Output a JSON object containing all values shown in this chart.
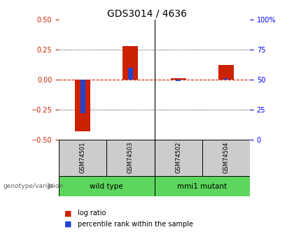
{
  "title": "GDS3014 / 4636",
  "samples": [
    "GSM74501",
    "GSM74503",
    "GSM74502",
    "GSM74504"
  ],
  "log_ratios": [
    -0.43,
    0.28,
    0.01,
    0.12
  ],
  "percentile_ranks": [
    22,
    60,
    49,
    51
  ],
  "groups": [
    {
      "label": "wild type",
      "color": "#5cd65c",
      "indices": [
        0,
        1
      ]
    },
    {
      "label": "mmi1 mutant",
      "color": "#5cd65c",
      "indices": [
        2,
        3
      ]
    }
  ],
  "ylim_left": [
    -0.5,
    0.5
  ],
  "ylim_right": [
    0,
    100
  ],
  "y_ticks_left": [
    -0.5,
    -0.25,
    0,
    0.25,
    0.5
  ],
  "y_ticks_right": [
    0,
    25,
    50,
    75,
    100
  ],
  "bar_color_red": "#cc2200",
  "bar_color_blue": "#2244cc",
  "zero_line_color": "#cc2200",
  "bg_color": "#ffffff",
  "sample_box_color": "#cccccc",
  "group_box_color": "#5cd65c",
  "group_box_color2": "#44cc44",
  "title_fontsize": 10,
  "tick_fontsize": 7,
  "legend_fontsize": 7
}
